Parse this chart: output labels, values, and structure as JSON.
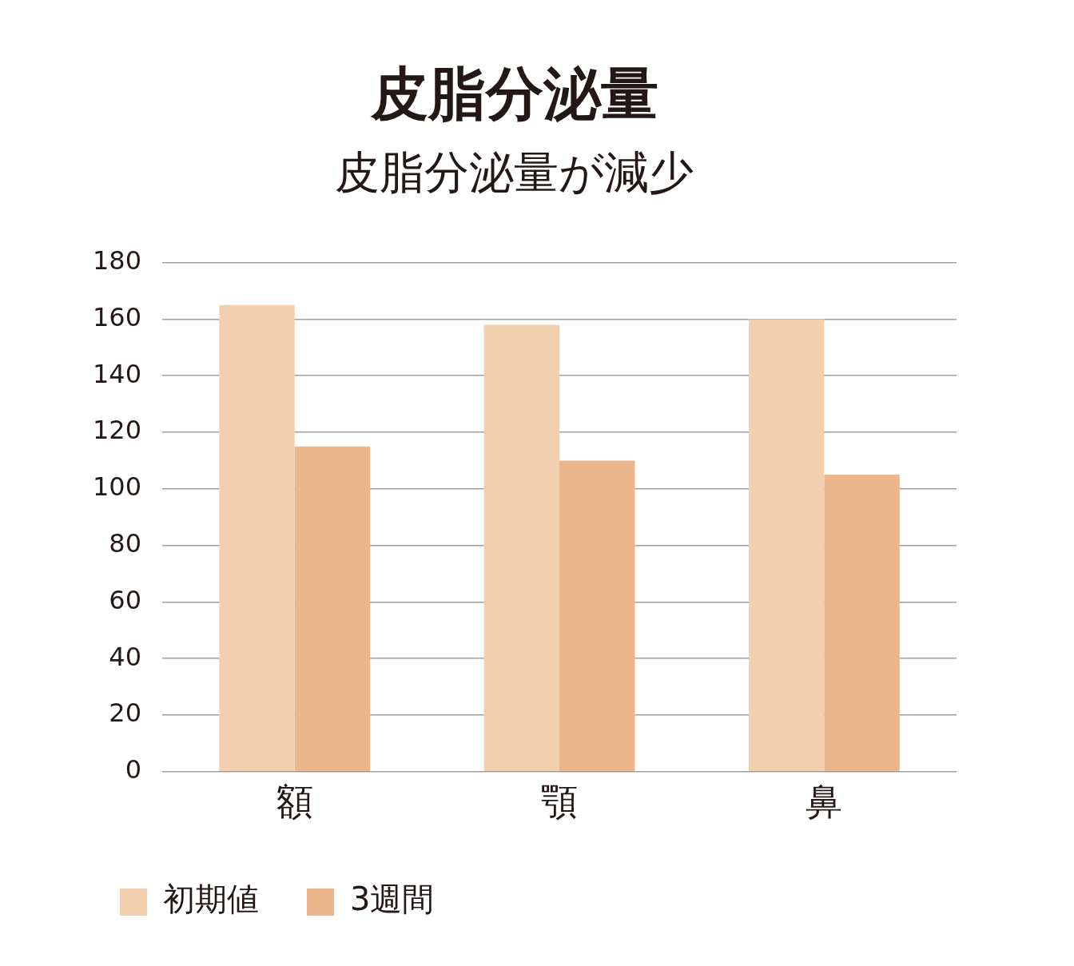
{
  "chart_data": {
    "type": "bar",
    "title": "皮脂分泌量",
    "subtitle": "皮脂分泌量が減少",
    "categories": [
      "額",
      "顎",
      "鼻"
    ],
    "series": [
      {
        "name": "初期値",
        "color": "#f2cfae",
        "values": [
          165,
          158,
          160
        ]
      },
      {
        "name": "3週間",
        "color": "#ecb68c",
        "values": [
          115,
          110,
          105
        ]
      }
    ],
    "ylim": [
      0,
      180
    ],
    "yticks": [
      0,
      20,
      40,
      60,
      80,
      100,
      120,
      140,
      160,
      180
    ],
    "grid": "y",
    "legend": "bottom left"
  }
}
